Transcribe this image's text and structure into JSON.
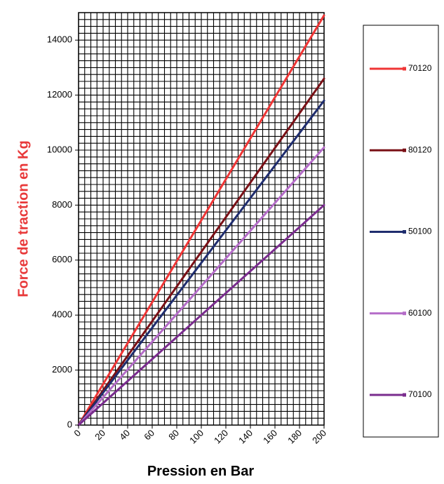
{
  "chart_data": {
    "type": "line",
    "xlabel": "Pression en Bar",
    "ylabel": "Force de traction en Kg",
    "xlim": [
      0,
      200
    ],
    "ylim": [
      0,
      15000
    ],
    "x_ticks": [
      0,
      20,
      40,
      60,
      80,
      100,
      120,
      140,
      160,
      180,
      200
    ],
    "y_ticks": [
      0,
      2000,
      4000,
      6000,
      8000,
      10000,
      12000,
      14000
    ],
    "grid": true,
    "legend_position": "right",
    "ylabel_color": "#E8393A",
    "series": [
      {
        "name": "70120",
        "color": "#EF3535",
        "x": [
          0,
          200
        ],
        "y": [
          0,
          14900
        ]
      },
      {
        "name": "80120",
        "color": "#7A1016",
        "x": [
          0,
          200
        ],
        "y": [
          0,
          12600
        ]
      },
      {
        "name": "50100",
        "color": "#1F2D6E",
        "x": [
          0,
          200
        ],
        "y": [
          0,
          11800
        ]
      },
      {
        "name": "60100",
        "color": "#B46CC8",
        "x": [
          0,
          200
        ],
        "y": [
          0,
          10100
        ]
      },
      {
        "name": "70100",
        "color": "#7A2C8E",
        "x": [
          0,
          200
        ],
        "y": [
          0,
          8000
        ]
      }
    ]
  }
}
